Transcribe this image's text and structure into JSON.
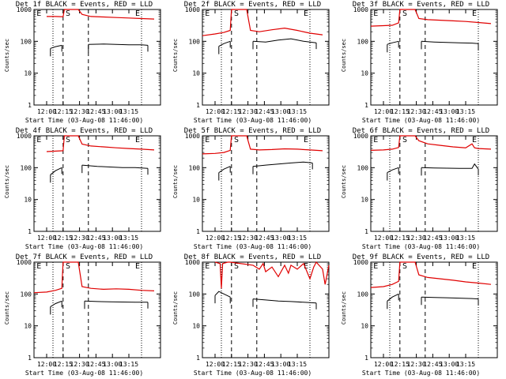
{
  "chart_data": [
    {
      "type": "line",
      "title": "Det 1f BLACK = Events, RED = LLD",
      "xlabel": "Start Time (03-Aug-08 11:46:00)",
      "ylabel": "Counts/sec",
      "yscale": "log",
      "ylim": [
        1,
        1000
      ],
      "xlim": [
        0,
        100
      ],
      "x_tick_labels": [
        "12:00",
        "12:15",
        "12:30",
        "12:45",
        "13:00",
        "13:15"
      ],
      "y_tick_labels": [
        "1",
        "10",
        "100",
        "1000"
      ],
      "markers": {
        "E_left": "E",
        "S": "S",
        "E_right": "E"
      },
      "red_segments": [
        {
          "x": [
            10,
            17,
            23,
            24,
            35,
            38,
            45,
            55,
            65,
            75,
            85,
            95
          ],
          "y": [
            600,
            600,
            590,
            1000,
            1000,
            700,
            600,
            580,
            560,
            540,
            520,
            500
          ]
        }
      ],
      "black_segments": [
        {
          "x": [
            13,
            17,
            22
          ],
          "y": [
            60,
            68,
            75
          ]
        },
        {
          "x": [
            43,
            55,
            65,
            75,
            85,
            90
          ],
          "y": [
            80,
            82,
            80,
            78,
            78,
            75
          ]
        }
      ]
    },
    {
      "type": "line",
      "title": "Det 2f BLACK = Events, RED = LLD",
      "xlabel": "Start Time (03-Aug-08 11:46:00)",
      "ylabel": "Counts/sec",
      "yscale": "log",
      "ylim": [
        1,
        1000
      ],
      "xlim": [
        0,
        100
      ],
      "x_tick_labels": [
        "12:00",
        "12:15",
        "12:30",
        "12:45",
        "13:00",
        "13:15"
      ],
      "y_tick_labels": [
        "1",
        "10",
        "100",
        "1000"
      ],
      "markers": {
        "E_left": "E",
        "S": "S",
        "E_right": "E"
      },
      "red_segments": [
        {
          "x": [
            0,
            10,
            17,
            22,
            23,
            35,
            38,
            45,
            55,
            65,
            75,
            85,
            95
          ],
          "y": [
            150,
            170,
            190,
            220,
            1000,
            1000,
            220,
            200,
            230,
            260,
            220,
            180,
            160
          ]
        }
      ],
      "black_segments": [
        {
          "x": [
            13,
            17,
            22
          ],
          "y": [
            70,
            85,
            100
          ]
        },
        {
          "x": [
            40,
            50,
            60,
            70,
            80,
            90
          ],
          "y": [
            100,
            95,
            110,
            120,
            100,
            90
          ]
        }
      ]
    },
    {
      "type": "line",
      "title": "Det 3f BLACK = Events, RED = LLD",
      "xlabel": "Start Time (03-Aug-08 11:46:00)",
      "ylabel": "Counts/sec",
      "yscale": "log",
      "ylim": [
        1,
        1000
      ],
      "xlim": [
        0,
        100
      ],
      "x_tick_labels": [
        "12:00",
        "12:15",
        "12:30",
        "12:45",
        "13:00",
        "13:15"
      ],
      "y_tick_labels": [
        "1",
        "10",
        "100",
        "1000"
      ],
      "markers": {
        "E_left": "E",
        "S": "S",
        "E_right": "E"
      },
      "red_segments": [
        {
          "x": [
            0,
            10,
            17,
            22,
            23,
            35,
            38,
            45,
            55,
            65,
            75,
            85,
            95
          ],
          "y": [
            300,
            310,
            320,
            380,
            1000,
            1000,
            520,
            480,
            460,
            440,
            420,
            390,
            360
          ]
        }
      ],
      "black_segments": [
        {
          "x": [
            13,
            17,
            22
          ],
          "y": [
            80,
            90,
            100
          ]
        },
        {
          "x": [
            40,
            50,
            60,
            70,
            80,
            85
          ],
          "y": [
            100,
            95,
            92,
            90,
            88,
            85
          ]
        }
      ]
    },
    {
      "type": "line",
      "title": "Det 4f BLACK = Events, RED = LLD",
      "xlabel": "Start Time (03-Aug-08 11:46:00)",
      "ylabel": "Counts/sec",
      "yscale": "log",
      "ylim": [
        1,
        1000
      ],
      "xlim": [
        0,
        100
      ],
      "x_tick_labels": [
        "12:00",
        "12:15",
        "12:30",
        "12:45",
        "13:00",
        "13:15"
      ],
      "y_tick_labels": [
        "1",
        "10",
        "100",
        "1000"
      ],
      "markers": {
        "E_left": "E",
        "S": "S",
        "E_right": "E"
      },
      "red_segments": [
        {
          "x": [
            10,
            17,
            23,
            24,
            35,
            38,
            45,
            55,
            65,
            75,
            85,
            95
          ],
          "y": [
            320,
            330,
            340,
            1000,
            1000,
            550,
            480,
            450,
            420,
            400,
            380,
            360
          ]
        }
      ],
      "black_segments": [
        {
          "x": [
            13,
            17,
            22
          ],
          "y": [
            60,
            80,
            100
          ]
        },
        {
          "x": [
            38,
            50,
            60,
            70,
            80,
            90
          ],
          "y": [
            120,
            110,
            105,
            100,
            100,
            95
          ]
        }
      ]
    },
    {
      "type": "line",
      "title": "Det 5f BLACK = Events, RED = LLD",
      "xlabel": "Start Time (03-Aug-08 11:46:00)",
      "ylabel": "Counts/sec",
      "yscale": "log",
      "ylim": [
        1,
        1000
      ],
      "xlim": [
        0,
        100
      ],
      "x_tick_labels": [
        "12:00",
        "12:15",
        "12:30",
        "12:45",
        "13:00",
        "13:15"
      ],
      "y_tick_labels": [
        "1",
        "10",
        "100",
        "1000"
      ],
      "markers": {
        "E_left": "E",
        "S": "S",
        "E_right": "E"
      },
      "red_segments": [
        {
          "x": [
            0,
            10,
            17,
            22,
            23,
            35,
            38,
            45,
            55,
            65,
            75,
            85,
            95
          ],
          "y": [
            270,
            280,
            300,
            350,
            1000,
            1000,
            380,
            360,
            370,
            390,
            380,
            360,
            340
          ]
        }
      ],
      "black_segments": [
        {
          "x": [
            13,
            17,
            22
          ],
          "y": [
            70,
            90,
            110
          ]
        },
        {
          "x": [
            40,
            50,
            60,
            70,
            80,
            87
          ],
          "y": [
            110,
            120,
            130,
            140,
            150,
            140
          ]
        }
      ]
    },
    {
      "type": "line",
      "title": "Det 6f BLACK = Events, RED = LLD",
      "xlabel": "Start Time (03-Aug-08 11:46:00)",
      "ylabel": "Counts/sec",
      "yscale": "log",
      "ylim": [
        1,
        1000
      ],
      "xlim": [
        0,
        100
      ],
      "x_tick_labels": [
        "12:00",
        "12:15",
        "12:30",
        "12:45",
        "13:00",
        "13:15"
      ],
      "y_tick_labels": [
        "1",
        "10",
        "100",
        "1000"
      ],
      "markers": {
        "E_left": "E",
        "S": "S",
        "E_right": "E"
      },
      "red_segments": [
        {
          "x": [
            0,
            10,
            17,
            22,
            23,
            35,
            38,
            45,
            55,
            65,
            75,
            80,
            82,
            85,
            95
          ],
          "y": [
            350,
            360,
            380,
            430,
            1000,
            1000,
            700,
            560,
            500,
            450,
            420,
            560,
            420,
            400,
            380
          ]
        }
      ],
      "black_segments": [
        {
          "x": [
            13,
            17,
            22
          ],
          "y": [
            70,
            85,
            100
          ]
        },
        {
          "x": [
            40,
            50,
            60,
            70,
            80,
            82,
            85
          ],
          "y": [
            100,
            98,
            96,
            95,
            95,
            130,
            90
          ]
        }
      ]
    },
    {
      "type": "line",
      "title": "Det 7f BLACK = Events, RED = LLD",
      "xlabel": "Start Time (03-Aug-08 11:46:00)",
      "ylabel": "Counts/sec",
      "yscale": "log",
      "ylim": [
        1,
        1000
      ],
      "xlim": [
        0,
        100
      ],
      "x_tick_labels": [
        "12:00",
        "12:15",
        "12:30",
        "12:45",
        "13:00",
        "13:15"
      ],
      "y_tick_labels": [
        "1",
        "10",
        "100",
        "1000"
      ],
      "markers": {
        "E_left": "E",
        "S": "S",
        "E_right": "E"
      },
      "red_segments": [
        {
          "x": [
            0,
            10,
            17,
            22,
            23,
            35,
            38,
            45,
            55,
            65,
            75,
            85,
            95
          ],
          "y": [
            110,
            115,
            130,
            150,
            1000,
            1000,
            170,
            150,
            140,
            145,
            140,
            130,
            125
          ]
        }
      ],
      "black_segments": [
        {
          "x": [
            13,
            17,
            22
          ],
          "y": [
            40,
            50,
            60
          ]
        },
        {
          "x": [
            40,
            50,
            60,
            70,
            80,
            90
          ],
          "y": [
            60,
            58,
            57,
            56,
            55,
            55
          ]
        }
      ]
    },
    {
      "type": "line",
      "title": "Det 8f BLACK = Events, RED = LLD",
      "xlabel": "Start Time (03-Aug-08 11:46:00)",
      "ylabel": "Counts/sec",
      "yscale": "log",
      "ylim": [
        1,
        1000
      ],
      "xlim": [
        0,
        100
      ],
      "x_tick_labels": [
        "12:00",
        "12:15",
        "12:30",
        "12:45",
        "13:00",
        "13:15"
      ],
      "y_tick_labels": [
        "1",
        "10",
        "100",
        "1000"
      ],
      "markers": {
        "E_left": "E",
        "S": "S",
        "E_right": "E"
      },
      "red_segments": [
        {
          "x": [
            10,
            14,
            15,
            16,
            20,
            22,
            40,
            45,
            48,
            50,
            55,
            60,
            65,
            68,
            70,
            75,
            80,
            85,
            88,
            90,
            95,
            97,
            100
          ],
          "y": [
            1000,
            900,
            150,
            900,
            1000,
            1000,
            800,
            600,
            900,
            500,
            700,
            350,
            800,
            450,
            800,
            600,
            900,
            300,
            700,
            1000,
            600,
            200,
            800
          ]
        }
      ],
      "black_segments": [
        {
          "x": [
            10,
            13,
            17,
            22
          ],
          "y": [
            90,
            120,
            100,
            80
          ]
        },
        {
          "x": [
            40,
            50,
            60,
            70,
            80,
            90
          ],
          "y": [
            70,
            65,
            60,
            58,
            55,
            52
          ]
        }
      ]
    },
    {
      "type": "line",
      "title": "Det 9f BLACK = Events, RED = LLD",
      "xlabel": "Start Time (03-Aug-08 11:46:00)",
      "ylabel": "Counts/sec",
      "yscale": "log",
      "ylim": [
        1,
        1000
      ],
      "xlim": [
        0,
        100
      ],
      "x_tick_labels": [
        "12:00",
        "12:15",
        "12:30",
        "12:45",
        "13:00",
        "13:15"
      ],
      "y_tick_labels": [
        "1",
        "10",
        "100",
        "1000"
      ],
      "markers": {
        "E_left": "E",
        "S": "S",
        "E_right": "E"
      },
      "red_segments": [
        {
          "x": [
            0,
            10,
            17,
            22,
            23,
            35,
            38,
            45,
            55,
            65,
            75,
            85,
            95
          ],
          "y": [
            160,
            170,
            200,
            250,
            1000,
            1000,
            400,
            330,
            300,
            270,
            240,
            220,
            200
          ]
        }
      ],
      "black_segments": [
        {
          "x": [
            13,
            17,
            22
          ],
          "y": [
            60,
            80,
            100
          ]
        },
        {
          "x": [
            40,
            50,
            60,
            70,
            80,
            85
          ],
          "y": [
            80,
            78,
            76,
            74,
            72,
            70
          ]
        }
      ]
    }
  ]
}
